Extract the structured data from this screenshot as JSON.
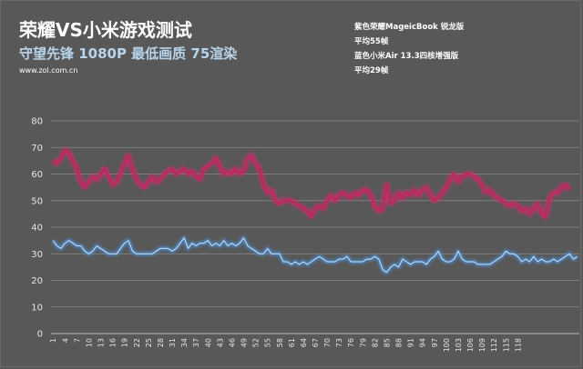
{
  "header": {
    "title": "荣耀VS小米游戏测试",
    "subtitle": "守望先锋 1080P 最低画质 75渲染",
    "source": "www.zol.com.cn"
  },
  "legend": {
    "line1": "紫色荣耀MageicBook 锐龙版",
    "line2": "平均55帧",
    "line3": "蓝色小米Air 13.3四核增强版",
    "line4": "平均29帧"
  },
  "colors": {
    "background": "#585858",
    "gridline": "#8a8a8a",
    "honor": "#c8306a",
    "xiaomi": "#4a8fd6"
  },
  "chart_data": {
    "type": "line",
    "title": "荣耀VS小米游戏测试",
    "subtitle": "守望先锋 1080P 最低画质 75渲染",
    "xlabel": "",
    "ylabel": "",
    "ylim": [
      0,
      80
    ],
    "yticks": [
      0,
      10,
      20,
      30,
      40,
      50,
      60,
      70,
      80
    ],
    "xtick_labels": [
      "1",
      "4",
      "7",
      "10",
      "13",
      "16",
      "19",
      "22",
      "25",
      "28",
      "31",
      "34",
      "37",
      "40",
      "43",
      "46",
      "49",
      "52",
      "55",
      "58",
      "61",
      "64",
      "67",
      "70",
      "73",
      "76",
      "79",
      "82",
      "85",
      "88",
      "91",
      "94",
      "97",
      "100",
      "103",
      "106",
      "109",
      "112",
      "115",
      "118"
    ],
    "grid": true,
    "legend_position": "top-right text",
    "x_start": 1,
    "series": [
      {
        "name": "紫色荣耀MageicBook 锐龙版",
        "color": "#c8306a",
        "average": 55,
        "values": [
          65,
          64,
          66,
          69,
          68,
          65,
          62,
          57,
          55,
          57,
          59,
          58,
          60,
          62,
          59,
          56,
          57,
          60,
          64,
          67,
          62,
          58,
          56,
          55,
          57,
          59,
          57,
          58,
          60,
          61,
          62,
          60,
          61,
          62,
          60,
          61,
          59,
          58,
          62,
          63,
          64,
          66,
          63,
          60,
          61,
          60,
          62,
          60,
          61,
          66,
          67,
          64,
          62,
          56,
          53,
          54,
          50,
          49,
          50,
          50,
          50,
          49,
          48,
          47,
          46,
          44,
          47,
          48,
          47,
          50,
          52,
          50,
          52,
          53,
          52,
          51,
          53,
          52,
          54,
          54,
          52,
          48,
          46,
          47,
          56,
          49,
          50,
          53,
          51,
          53,
          52,
          54,
          52,
          54,
          55,
          52,
          50,
          51,
          53,
          55,
          58,
          60,
          57,
          59,
          60,
          60,
          59,
          58,
          56,
          53,
          54,
          52,
          51,
          50,
          49,
          48,
          49,
          48,
          46,
          47,
          45,
          47,
          49,
          45,
          44,
          51,
          53,
          53,
          55,
          56,
          54
        ]
      },
      {
        "name": "蓝色小米Air 13.3四核增强版",
        "color": "#4a8fd6",
        "average": 29,
        "values": [
          35,
          33,
          32,
          34,
          35,
          34,
          33,
          33,
          31,
          30,
          31,
          33,
          32,
          31,
          30,
          30,
          30,
          32,
          34,
          35,
          31,
          30,
          30,
          30,
          30,
          30,
          31,
          32,
          32,
          32,
          31,
          32,
          34,
          36,
          32,
          34,
          33,
          34,
          34,
          35,
          33,
          34,
          33,
          35,
          33,
          34,
          33,
          34,
          36,
          33,
          32,
          31,
          30,
          30,
          32,
          30,
          30,
          30,
          27,
          27,
          26,
          27,
          26,
          27,
          26,
          27,
          28,
          29,
          28,
          27,
          27,
          27,
          28,
          28,
          29,
          27,
          27,
          27,
          27,
          28,
          28,
          29,
          28,
          24,
          23,
          25,
          26,
          25,
          28,
          27,
          26,
          27,
          27,
          27,
          26,
          28,
          29,
          31,
          28,
          27,
          27,
          28,
          31,
          28,
          27,
          27,
          27,
          26,
          26,
          26,
          26,
          27,
          28,
          29,
          31,
          30,
          30,
          29,
          27,
          28,
          27,
          29,
          27,
          28,
          27,
          27,
          28,
          27,
          28,
          29,
          30,
          28,
          29
        ]
      }
    ]
  }
}
